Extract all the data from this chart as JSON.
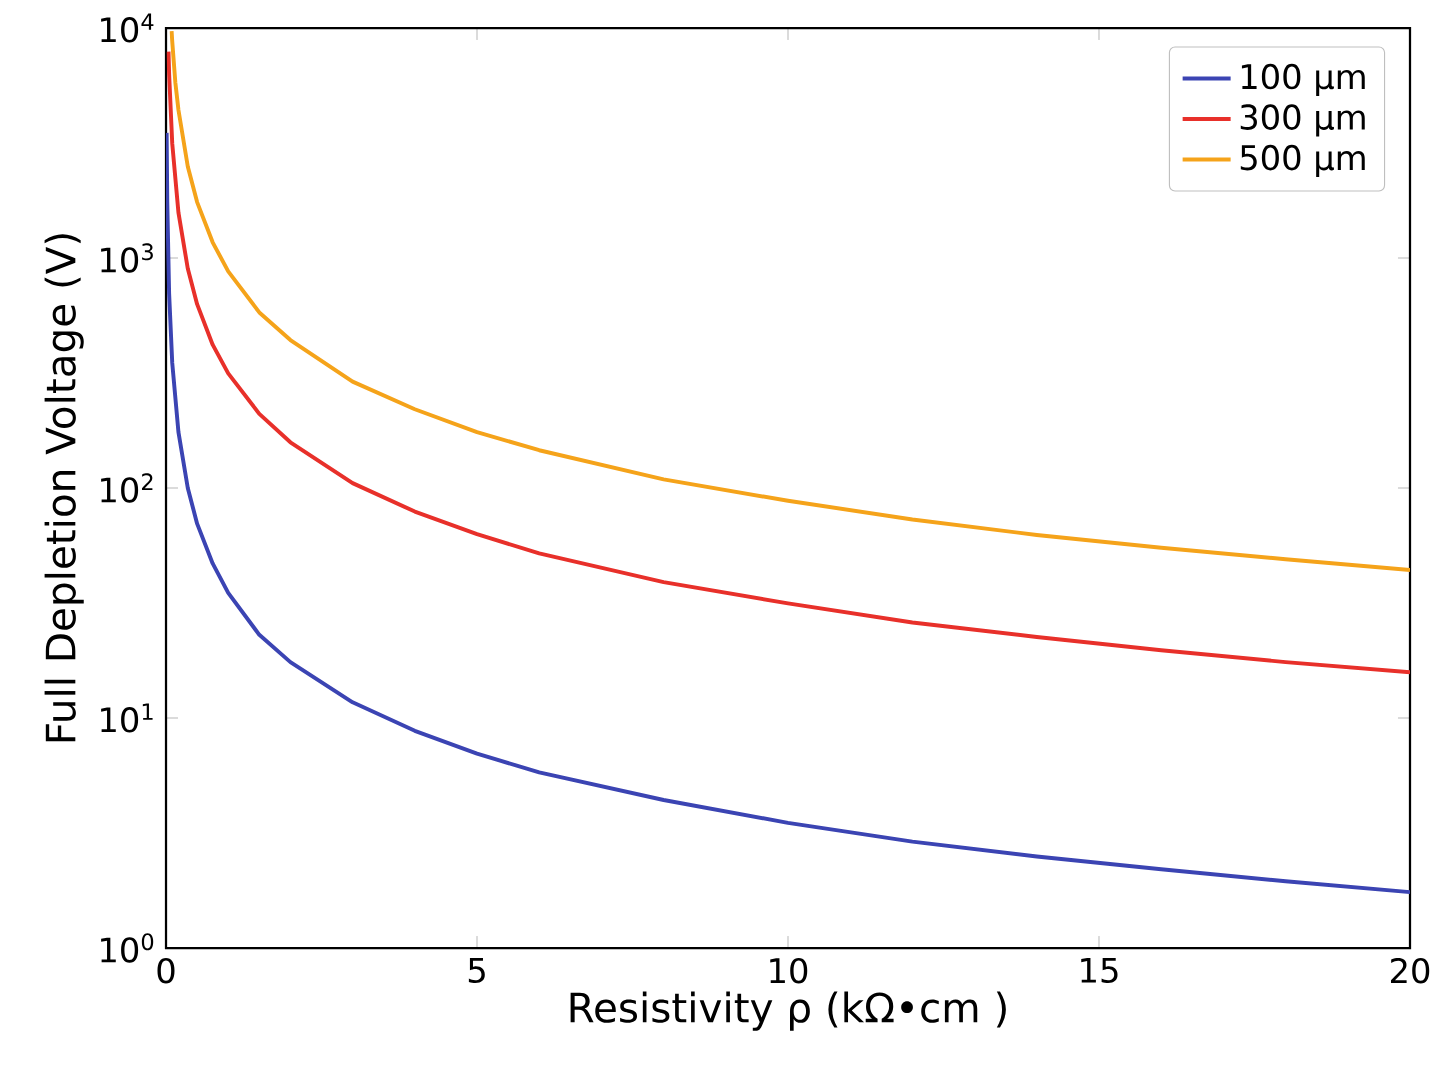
{
  "chart_data": {
    "type": "line",
    "xlabel": "Resistivity ρ (kΩ•cm )",
    "ylabel": "Full Depletion Voltage (V)",
    "log": "y",
    "xlim": [
      0,
      20
    ],
    "xticks": [
      0,
      5,
      10,
      15,
      20
    ],
    "ylim": [
      1,
      10000
    ],
    "yticks": [
      {
        "value": 1,
        "label": "10$^{0}$"
      },
      {
        "value": 10,
        "label": "10$^{1}$"
      },
      {
        "value": 100,
        "label": "10$^{2}$"
      },
      {
        "value": 1000,
        "label": "10$^{3}$"
      },
      {
        "value": 10000,
        "label": "10$^{4}$"
      }
    ],
    "legend": "top right",
    "marker": "none",
    "line_style": "solid",
    "grid": false,
    "series": [
      {
        "name": "100 µm",
        "color": "#3b44b3",
        "x": [
          0.01,
          0.02,
          0.05,
          0.1,
          0.2,
          0.35,
          0.5,
          0.75,
          1,
          1.5,
          2,
          3,
          4,
          5,
          6,
          8,
          10,
          12,
          14,
          16,
          18,
          20
        ],
        "values": [
          3500,
          1750,
          700,
          350,
          175,
          100,
          70,
          47,
          35,
          23,
          17.5,
          11.7,
          8.8,
          7,
          5.8,
          4.4,
          3.5,
          2.9,
          2.5,
          2.2,
          1.95,
          1.75
        ]
      },
      {
        "name": "300 µm",
        "color": "#e8302a",
        "x": [
          0.04,
          0.05,
          0.1,
          0.2,
          0.35,
          0.5,
          0.75,
          1,
          1.5,
          2,
          3,
          4,
          5,
          6,
          8,
          10,
          12,
          14,
          16,
          18,
          20
        ],
        "values": [
          7900,
          6300,
          3150,
          1575,
          900,
          630,
          420,
          315,
          210,
          158,
          105,
          79,
          63,
          52,
          39,
          31.5,
          26,
          22.5,
          19.7,
          17.5,
          15.8
        ]
      },
      {
        "name": "500 µm",
        "color": "#f5a31a",
        "x": [
          0.09,
          0.1,
          0.15,
          0.2,
          0.35,
          0.5,
          0.75,
          1,
          1.5,
          2,
          3,
          4,
          5,
          6,
          8,
          10,
          12,
          14,
          16,
          18,
          20
        ],
        "values": [
          9700,
          8750,
          5800,
          4400,
          2500,
          1750,
          1170,
          875,
          580,
          440,
          290,
          220,
          175,
          146,
          109,
          88,
          73,
          62.5,
          55,
          49,
          44
        ]
      }
    ]
  }
}
